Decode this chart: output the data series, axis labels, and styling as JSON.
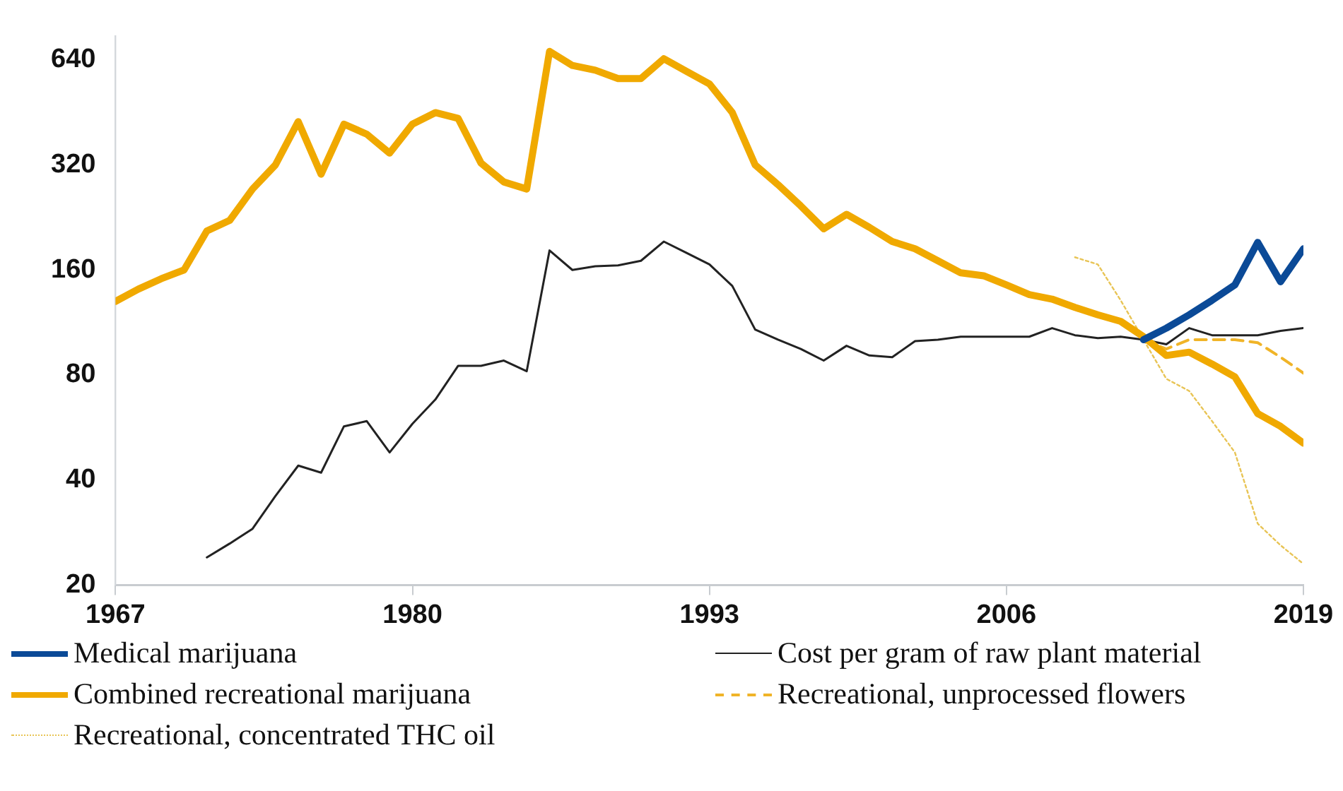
{
  "chart_data": {
    "type": "line",
    "log": "y",
    "xlim": [
      1967,
      2019
    ],
    "xticks": [
      1967,
      1980,
      1993,
      2006,
      2019
    ],
    "ylim": [
      20,
      750
    ],
    "yticks": [
      20,
      40,
      80,
      160,
      320,
      640
    ],
    "grid": false,
    "legend": "bottom",
    "marker": "none",
    "series": [
      {
        "name": "Medical marijuana",
        "color": "#0b4a97",
        "line_style": "solid",
        "x": [
          2012,
          2013,
          2014,
          2015,
          2016,
          2017,
          2018,
          2019
        ],
        "values": [
          101,
          109,
          119,
          131,
          145,
          192,
          148,
          184
        ]
      },
      {
        "name": "Cost per gram of raw plant material",
        "color": "#222222",
        "line_style": "solid",
        "x": [
          1971,
          1972,
          1973,
          1974,
          1975,
          1976,
          1977,
          1978,
          1979,
          1980,
          1981,
          1982,
          1983,
          1984,
          1985,
          1986,
          1987,
          1988,
          1989,
          1990,
          1991,
          1992,
          1993,
          1994,
          1995,
          1996,
          1997,
          1998,
          1999,
          2000,
          2001,
          2002,
          2003,
          2004,
          2005,
          2006,
          2007,
          2008,
          2009,
          2010,
          2011,
          2012,
          2013,
          2014,
          2015,
          2016,
          2017,
          2018,
          2019
        ],
        "values": [
          24,
          26.3,
          29,
          36,
          44,
          42,
          57,
          59,
          48,
          58,
          68,
          85,
          85,
          88,
          82,
          182,
          160,
          164,
          165,
          170,
          193,
          179,
          166,
          144,
          108,
          101,
          95,
          88,
          97,
          91,
          90,
          100,
          101,
          103,
          103,
          103,
          103,
          109,
          104,
          102,
          103,
          101,
          98,
          109,
          104,
          104,
          104,
          107,
          109
        ]
      },
      {
        "name": "Combined recreational marijuana",
        "color": "#f0a900",
        "line_style": "solid",
        "x": [
          1967,
          1968,
          1969,
          1970,
          1971,
          1972,
          1973,
          1974,
          1975,
          1976,
          1977,
          1978,
          1979,
          1980,
          1981,
          1982,
          1983,
          1984,
          1985,
          1986,
          1987,
          1988,
          1989,
          1990,
          1991,
          1992,
          1993,
          1994,
          1995,
          1996,
          1997,
          1998,
          1999,
          2000,
          2001,
          2002,
          2003,
          2004,
          2005,
          2006,
          2007,
          2008,
          2009,
          2010,
          2011,
          2012,
          2013,
          2014,
          2015,
          2016,
          2017,
          2018,
          2019
        ],
        "values": [
          130,
          141,
          151,
          160,
          207,
          222,
          273,
          320,
          426,
          301,
          419,
          392,
          346,
          419,
          452,
          435,
          324,
          286,
          273,
          677,
          617,
          598,
          566,
          566,
          645,
          593,
          546,
          452,
          320,
          281,
          244,
          210,
          231,
          212,
          193,
          184,
          170,
          157,
          154,
          145,
          136,
          132,
          125,
          119,
          114,
          103,
          91,
          93,
          86,
          79,
          62,
          57,
          51
        ]
      },
      {
        "name": "Recreational, unprocessed flowers",
        "color": "#f0b428",
        "line_style": "dashed",
        "x": [
          2012,
          2013,
          2014,
          2015,
          2016,
          2017,
          2018,
          2019
        ],
        "values": [
          101,
          95,
          101,
          101,
          101,
          99,
          90,
          81
        ]
      },
      {
        "name": "Recreational, concentrated THC oil",
        "color": "#e8c455",
        "line_style": "dotted",
        "x": [
          2009,
          2010,
          2011,
          2012,
          2013,
          2014,
          2015,
          2016,
          2017,
          2018,
          2019
        ],
        "values": [
          174,
          166,
          131,
          101,
          78,
          72,
          59,
          48,
          30,
          26,
          23
        ]
      }
    ]
  }
}
